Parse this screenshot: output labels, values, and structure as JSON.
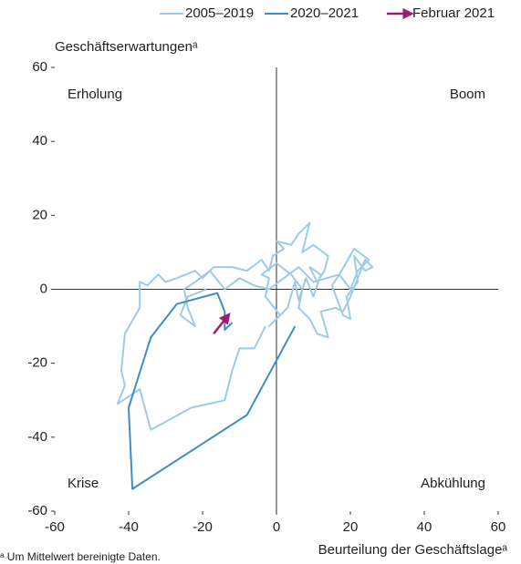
{
  "chart_data": {
    "type": "line",
    "y_label": "Geschäftserwartungenᵃ",
    "x_label": "Beurteilung der Geschäftslageᵃ",
    "footnote": "ᵃ Um Mittelwert bereinigte Daten.",
    "quadrant_labels": [
      "Erholung",
      "Boom",
      "Krise",
      "Abkühlung"
    ],
    "xlim": [
      -60,
      60
    ],
    "xticks": [
      -60,
      -40,
      -20,
      0,
      20,
      40,
      60
    ],
    "ylim": [
      -60,
      60
    ],
    "yticks": [
      -60,
      -40,
      -20,
      0,
      20,
      40,
      60
    ],
    "series": [
      {
        "name": "2005–2019",
        "color": "#9dcbe7",
        "x": [
          -3,
          -6,
          -10,
          -12,
          -14,
          -23,
          -34,
          -37,
          -43,
          -41,
          -42,
          -41,
          -37,
          -37,
          -35,
          -32,
          -30,
          -27,
          -22,
          -20,
          -17,
          -12,
          -8,
          -4,
          -2,
          -1,
          2,
          0,
          4,
          6,
          9,
          7,
          10,
          14,
          13,
          11,
          9,
          12,
          10,
          8,
          6,
          5,
          3,
          0,
          -2,
          1,
          -3,
          -2,
          -4,
          0,
          4,
          7,
          6,
          9,
          11,
          14,
          12,
          16,
          18,
          20,
          22,
          24,
          26,
          24,
          21,
          22,
          19,
          20,
          18,
          15,
          17,
          20,
          22,
          25,
          21,
          17,
          10,
          6,
          2,
          -2,
          -6,
          -10,
          -14,
          -18,
          -22,
          -25,
          -24,
          -22,
          -26,
          -24,
          -19
        ],
        "y": [
          -10,
          -16,
          -16,
          -22,
          -30,
          -32,
          -38,
          -27,
          -31,
          -26,
          -22,
          -12,
          -5,
          2,
          1,
          4,
          2,
          3,
          5,
          3,
          6,
          6,
          5,
          8,
          5,
          9,
          11,
          13,
          12,
          15,
          18,
          10,
          12,
          9,
          5,
          2,
          6,
          4,
          -2,
          3,
          -3,
          2,
          -5,
          -8,
          -10,
          -7,
          -2,
          3,
          4,
          7,
          4,
          0,
          -5,
          -8,
          -12,
          -13,
          -6,
          -5,
          -6,
          -2,
          3,
          8,
          6,
          5,
          9,
          2,
          -2,
          -8,
          -7,
          1,
          4,
          0,
          5,
          8,
          11,
          4,
          2,
          6,
          3,
          0,
          1,
          3,
          0,
          5,
          2,
          0,
          -5,
          -10,
          -7,
          -2,
          0
        ]
      },
      {
        "name": "2020–2021",
        "color": "#3d8ec6",
        "x": [
          -12,
          -14,
          -14,
          -16,
          -27,
          -34,
          -40,
          -39,
          -8,
          5
        ],
        "y": [
          -9,
          -11,
          -6,
          -1,
          -4,
          -13,
          -32,
          -54,
          -34,
          -10
        ]
      },
      {
        "name": "Februar 2021",
        "color": "#9b1f6e",
        "x": [
          -17,
          -13
        ],
        "y": [
          -12,
          -7
        ]
      }
    ]
  }
}
